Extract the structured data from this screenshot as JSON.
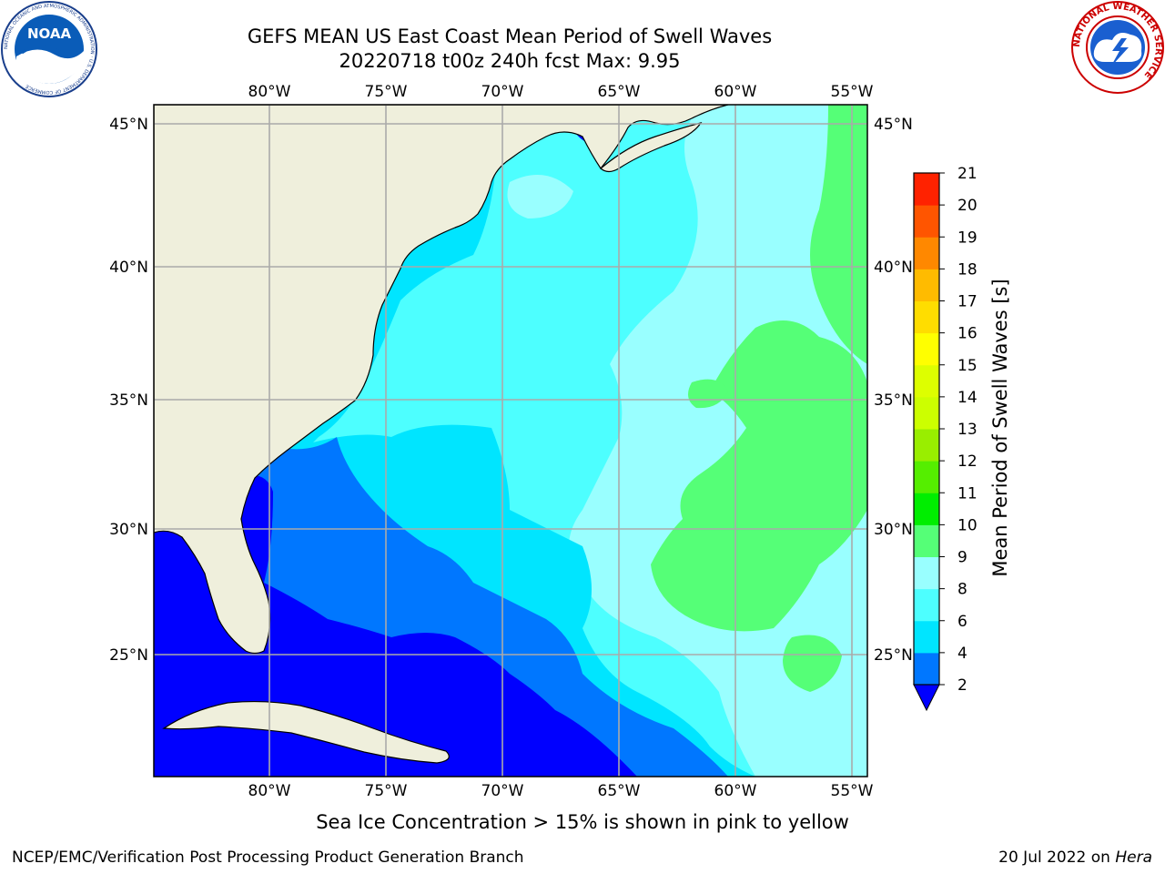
{
  "header": {
    "title_line1": "GEFS MEAN US East Coast Mean Period of Swell Waves",
    "title_line2": "20220718 t00z 240h fcst   Max: 9.95"
  },
  "logos": {
    "left": {
      "text": "NOAA",
      "ring_text": "NATIONAL OCEANIC AND ATMOSPHERIC ADMINISTRATION · U.S. DEPARTMENT OF COMMERCE"
    },
    "right": {
      "ring_text": "NATIONAL WEATHER SERVICE"
    }
  },
  "map": {
    "lon_labels": [
      "80°W",
      "75°W",
      "70°W",
      "65°W",
      "60°W",
      "55°W"
    ],
    "lat_labels": [
      "45°N",
      "40°N",
      "35°N",
      "30°N",
      "25°N"
    ],
    "lon_range": [
      -85,
      -54.3
    ],
    "lat_range": [
      20.5,
      46
    ],
    "land_color": "#efefdc",
    "grid_color": "#aaaaaa"
  },
  "colorbar": {
    "label": "Mean Period of Swell Waves [s]",
    "ticks": [
      "2",
      "4",
      "6",
      "8",
      "9",
      "10",
      "11",
      "12",
      "13",
      "14",
      "15",
      "16",
      "17",
      "18",
      "19",
      "20",
      "21"
    ],
    "colors": [
      "#0077ff",
      "#00e5ff",
      "#4dffff",
      "#99ffff",
      "#55ff77",
      "#00ee00",
      "#55ee00",
      "#99ee00",
      "#ccff00",
      "#ddff00",
      "#ffff00",
      "#ffdd00",
      "#ffbb00",
      "#ff8800",
      "#ff5500",
      "#ff2200"
    ],
    "under_color": "#0000ff"
  },
  "footer": {
    "ice_note": "Sea Ice Concentration > 15% is shown in pink to yellow",
    "left": "NCEP/EMC/Verification Post Processing Product Generation Branch",
    "right_date": "20 Jul 2022 on",
    "right_host": "Hera"
  }
}
